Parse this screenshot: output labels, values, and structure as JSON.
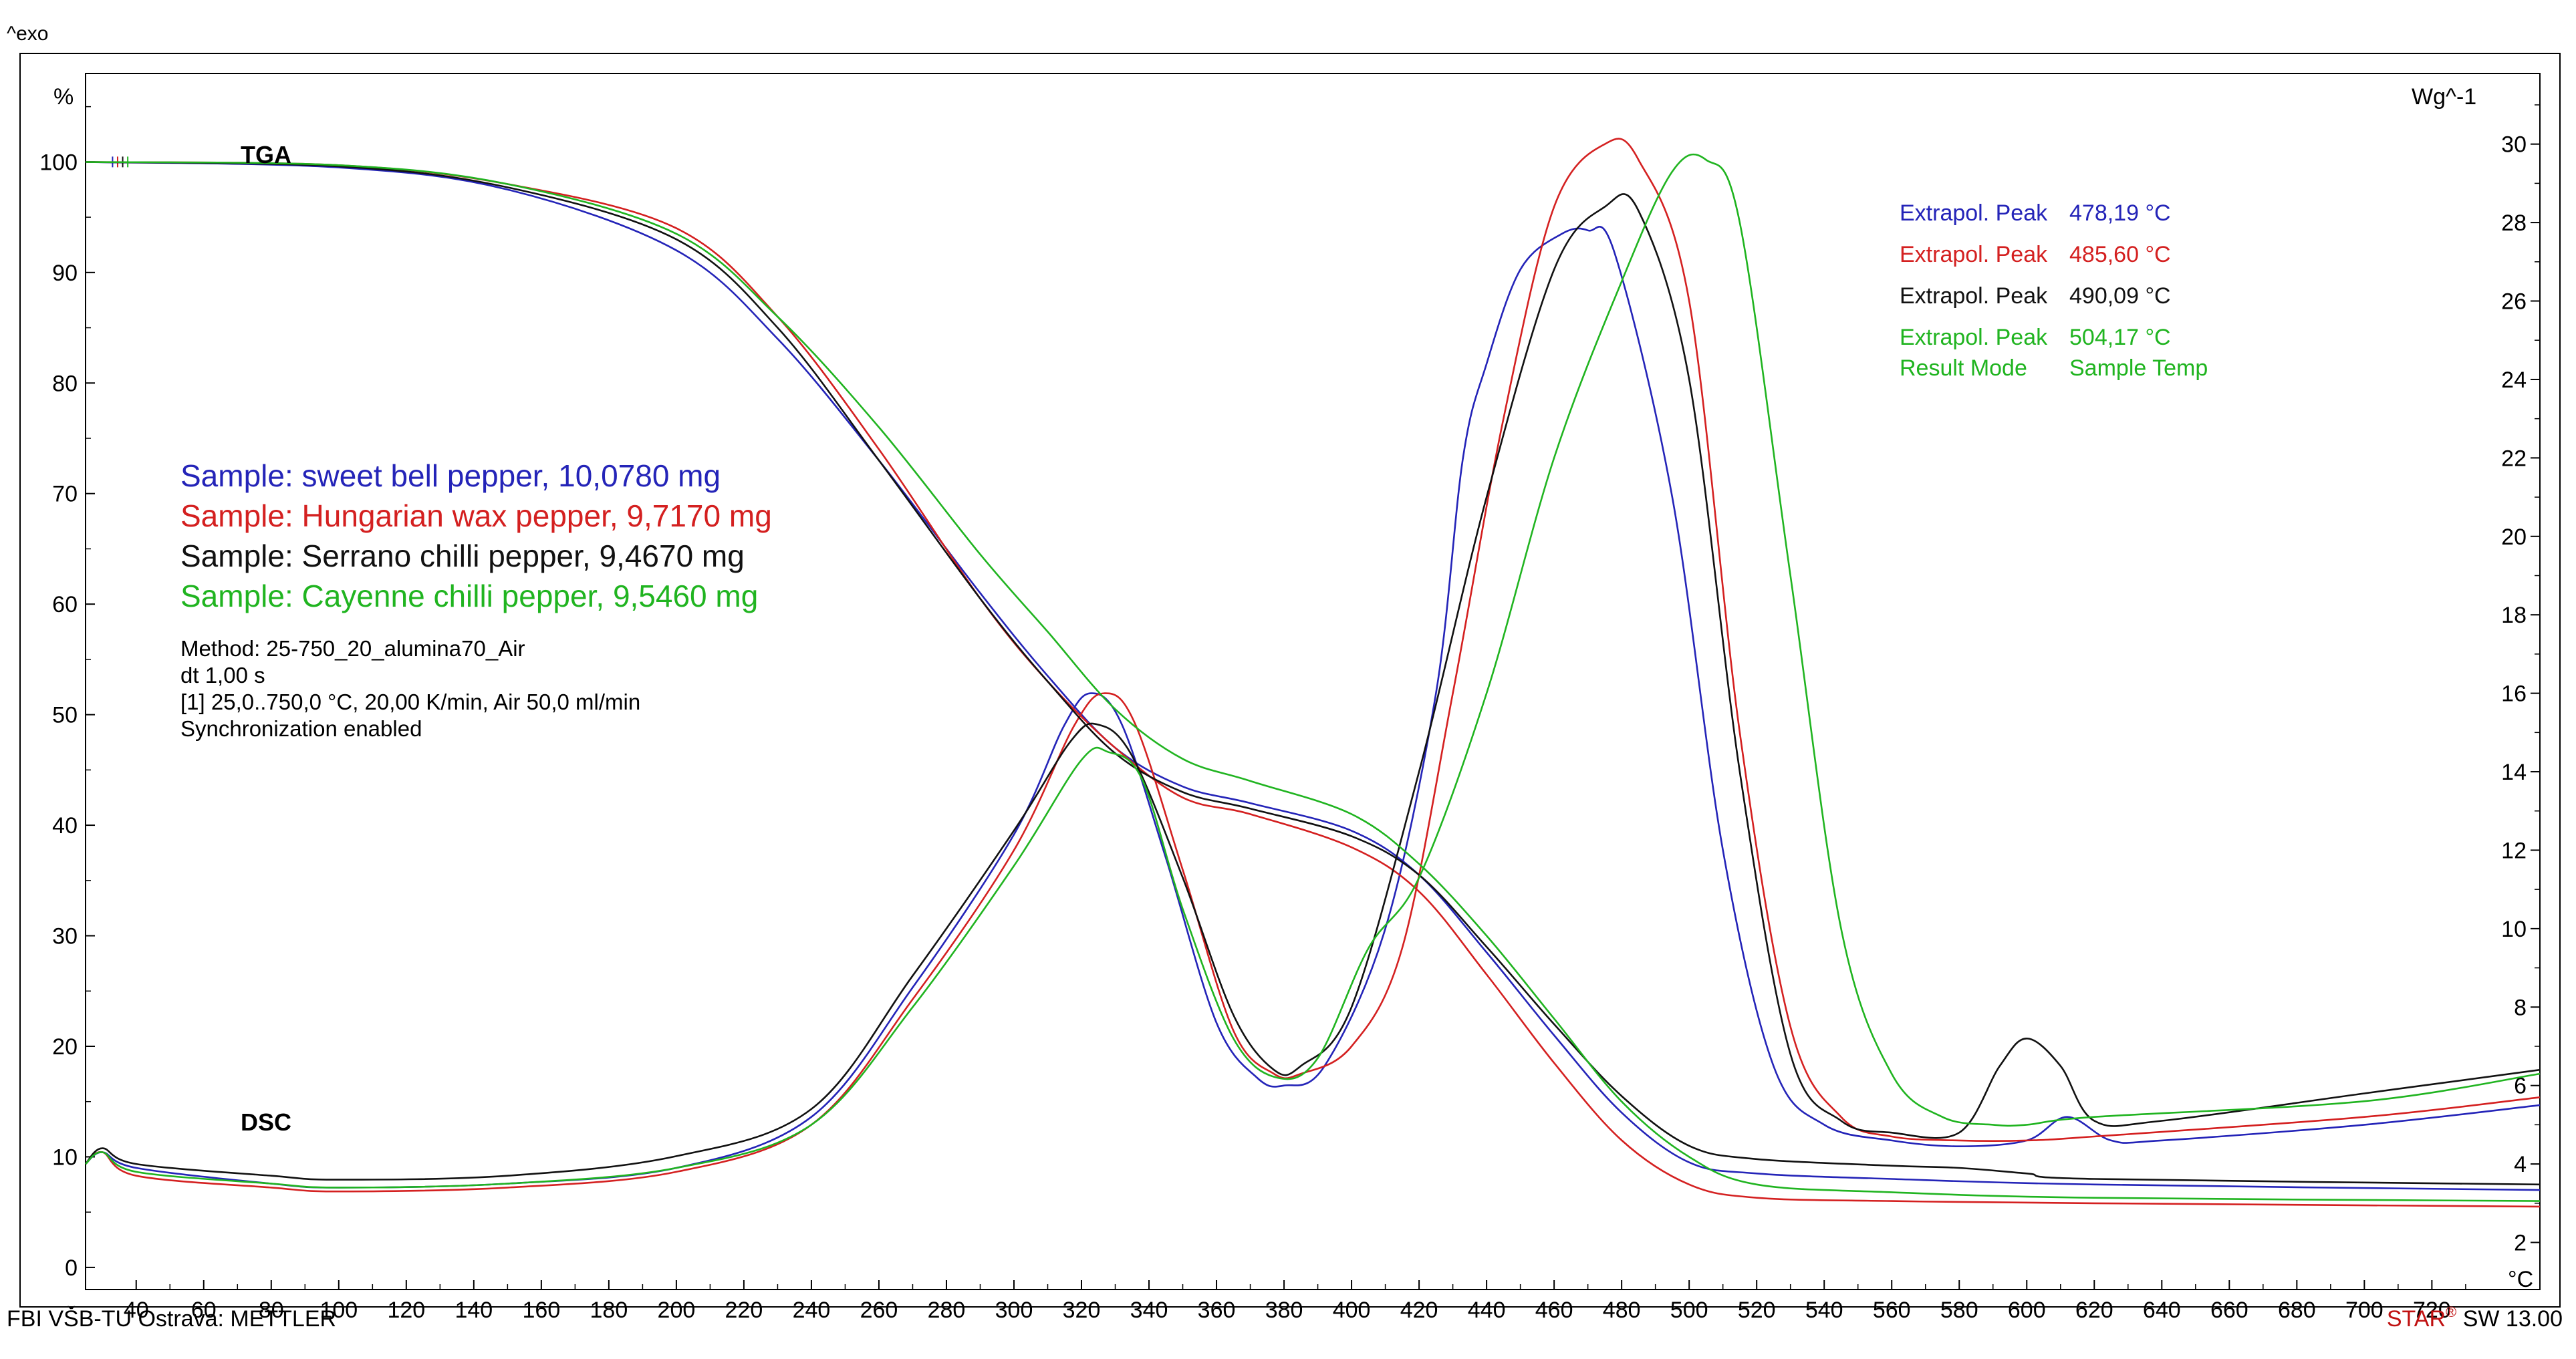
{
  "header": {
    "exo_label": "^exo"
  },
  "footer": {
    "left": "FBI VŠB-TU Ostrava: METTLER",
    "right_prefix": "STAR",
    "right_suffix": " SW 13.00"
  },
  "chart_data": {
    "type": "line",
    "axes": {
      "x": {
        "label": "°C",
        "min": 25,
        "max": 752,
        "ticks": [
          40,
          60,
          80,
          100,
          120,
          140,
          160,
          180,
          200,
          220,
          240,
          260,
          280,
          300,
          320,
          340,
          360,
          380,
          400,
          420,
          440,
          460,
          480,
          500,
          520,
          540,
          560,
          580,
          600,
          620,
          640,
          660,
          680,
          700,
          720
        ]
      },
      "y_left": {
        "label": "%",
        "min": -2,
        "max": 108,
        "ticks": [
          0,
          10,
          20,
          30,
          40,
          50,
          60,
          70,
          80,
          90,
          100
        ]
      },
      "y_right": {
        "label": "Wg^-1",
        "min": 0.8,
        "max": 31.8,
        "ticks": [
          2,
          4,
          6,
          8,
          10,
          12,
          14,
          16,
          18,
          20,
          22,
          24,
          26,
          28,
          30
        ]
      }
    },
    "curve_labels": {
      "tga": "TGA",
      "dsc": "DSC"
    },
    "series": [
      {
        "name": "Sample: sweet bell pepper, 10,0780 mg",
        "color": "#2424b8",
        "tga": [
          [
            25,
            100
          ],
          [
            100,
            99.5
          ],
          [
            150,
            97.5
          ],
          [
            200,
            92
          ],
          [
            230,
            84
          ],
          [
            260,
            73
          ],
          [
            290,
            61
          ],
          [
            310,
            53.5
          ],
          [
            330,
            47
          ],
          [
            350,
            43.5
          ],
          [
            370,
            42
          ],
          [
            400,
            39.5
          ],
          [
            420,
            35.5
          ],
          [
            440,
            28.5
          ],
          [
            460,
            21
          ],
          [
            480,
            14
          ],
          [
            500,
            9.5
          ],
          [
            520,
            8.5
          ],
          [
            560,
            8
          ],
          [
            620,
            7.5
          ],
          [
            752,
            7
          ]
        ],
        "dsc": [
          [
            25,
            4.0
          ],
          [
            30,
            4.3
          ],
          [
            40,
            3.9
          ],
          [
            80,
            3.5
          ],
          [
            100,
            3.4
          ],
          [
            150,
            3.5
          ],
          [
            200,
            3.9
          ],
          [
            240,
            5.2
          ],
          [
            270,
            8.5
          ],
          [
            300,
            12.4
          ],
          [
            315,
            15.2
          ],
          [
            323,
            16.0
          ],
          [
            332,
            15.2
          ],
          [
            345,
            11.8
          ],
          [
            360,
            7.6
          ],
          [
            372,
            6.2
          ],
          [
            380,
            6.0
          ],
          [
            392,
            6.5
          ],
          [
            410,
            10
          ],
          [
            425,
            16
          ],
          [
            433,
            22
          ],
          [
            440,
            24.4
          ],
          [
            450,
            26.8
          ],
          [
            462,
            27.7
          ],
          [
            470,
            27.8
          ],
          [
            478,
            27.2
          ],
          [
            495,
            21
          ],
          [
            510,
            12
          ],
          [
            525,
            6.5
          ],
          [
            540,
            5.0
          ],
          [
            560,
            4.6
          ],
          [
            580,
            4.45
          ],
          [
            600,
            4.6
          ],
          [
            612,
            5.2
          ],
          [
            625,
            4.6
          ],
          [
            640,
            4.6
          ],
          [
            700,
            5.0
          ],
          [
            752,
            5.5
          ]
        ]
      },
      {
        "name": "Sample: Hungarian wax pepper, 9,7170 mg",
        "color": "#d42020",
        "tga": [
          [
            25,
            100
          ],
          [
            100,
            99.7
          ],
          [
            150,
            98
          ],
          [
            200,
            94
          ],
          [
            230,
            86
          ],
          [
            260,
            74
          ],
          [
            290,
            60.5
          ],
          [
            310,
            53
          ],
          [
            330,
            47
          ],
          [
            350,
            42.5
          ],
          [
            370,
            41
          ],
          [
            400,
            38
          ],
          [
            420,
            34
          ],
          [
            440,
            26.5
          ],
          [
            460,
            18.5
          ],
          [
            480,
            11.5
          ],
          [
            500,
            7.5
          ],
          [
            520,
            6.3
          ],
          [
            560,
            6
          ],
          [
            620,
            5.8
          ],
          [
            752,
            5.5
          ]
        ],
        "dsc": [
          [
            25,
            4.0
          ],
          [
            30,
            4.3
          ],
          [
            40,
            3.7
          ],
          [
            80,
            3.4
          ],
          [
            100,
            3.3
          ],
          [
            150,
            3.4
          ],
          [
            200,
            3.8
          ],
          [
            240,
            5.0
          ],
          [
            270,
            8.2
          ],
          [
            300,
            12.0
          ],
          [
            318,
            15.2
          ],
          [
            327,
            16.0
          ],
          [
            336,
            15.2
          ],
          [
            350,
            11.5
          ],
          [
            365,
            7.4
          ],
          [
            377,
            6.3
          ],
          [
            385,
            6.3
          ],
          [
            400,
            7.0
          ],
          [
            415,
            9.5
          ],
          [
            430,
            16
          ],
          [
            445,
            23
          ],
          [
            460,
            28.4
          ],
          [
            475,
            30.0
          ],
          [
            485,
            29.6
          ],
          [
            500,
            26
          ],
          [
            515,
            15
          ],
          [
            530,
            7.5
          ],
          [
            545,
            5.2
          ],
          [
            560,
            4.7
          ],
          [
            580,
            4.6
          ],
          [
            600,
            4.6
          ],
          [
            620,
            4.7
          ],
          [
            700,
            5.2
          ],
          [
            752,
            5.7
          ]
        ]
      },
      {
        "name": "Sample: Serrano chilli pepper, 9,4670 mg",
        "color": "#111111",
        "tga": [
          [
            25,
            100
          ],
          [
            100,
            99.6
          ],
          [
            150,
            97.7
          ],
          [
            200,
            93
          ],
          [
            230,
            85
          ],
          [
            260,
            73
          ],
          [
            290,
            60.5
          ],
          [
            310,
            53
          ],
          [
            330,
            46.5
          ],
          [
            350,
            43
          ],
          [
            370,
            41.5
          ],
          [
            400,
            39
          ],
          [
            420,
            35.5
          ],
          [
            440,
            29
          ],
          [
            460,
            22
          ],
          [
            480,
            15.5
          ],
          [
            500,
            11
          ],
          [
            520,
            9.8
          ],
          [
            560,
            9.2
          ],
          [
            580,
            9
          ],
          [
            600,
            8.5
          ],
          [
            620,
            8
          ],
          [
            752,
            7.5
          ]
        ],
        "dsc": [
          [
            25,
            4.0
          ],
          [
            30,
            4.4
          ],
          [
            40,
            4.0
          ],
          [
            80,
            3.7
          ],
          [
            100,
            3.6
          ],
          [
            150,
            3.7
          ],
          [
            200,
            4.2
          ],
          [
            240,
            5.4
          ],
          [
            270,
            8.8
          ],
          [
            300,
            12.5
          ],
          [
            317,
            14.8
          ],
          [
            325,
            15.2
          ],
          [
            335,
            14.4
          ],
          [
            350,
            11.3
          ],
          [
            365,
            7.8
          ],
          [
            377,
            6.4
          ],
          [
            385,
            6.5
          ],
          [
            400,
            8.0
          ],
          [
            420,
            14
          ],
          [
            440,
            21
          ],
          [
            460,
            26.8
          ],
          [
            475,
            28.4
          ],
          [
            485,
            28.3
          ],
          [
            500,
            24
          ],
          [
            515,
            14
          ],
          [
            530,
            6.8
          ],
          [
            545,
            5.1
          ],
          [
            560,
            4.8
          ],
          [
            580,
            4.8
          ],
          [
            592,
            6.5
          ],
          [
            600,
            7.2
          ],
          [
            610,
            6.5
          ],
          [
            620,
            5.1
          ],
          [
            640,
            5.1
          ],
          [
            700,
            5.8
          ],
          [
            752,
            6.4
          ]
        ]
      },
      {
        "name": "Sample: Cayenne chilli pepper, 9,5460 mg",
        "color": "#20b420",
        "tga": [
          [
            25,
            100
          ],
          [
            100,
            99.7
          ],
          [
            150,
            98
          ],
          [
            200,
            93.5
          ],
          [
            230,
            86
          ],
          [
            260,
            76
          ],
          [
            290,
            64.5
          ],
          [
            310,
            57.5
          ],
          [
            330,
            50.5
          ],
          [
            350,
            46
          ],
          [
            370,
            44
          ],
          [
            400,
            41
          ],
          [
            420,
            36.5
          ],
          [
            440,
            30
          ],
          [
            460,
            22.5
          ],
          [
            480,
            15
          ],
          [
            500,
            10
          ],
          [
            520,
            7.5
          ],
          [
            560,
            6.8
          ],
          [
            620,
            6.3
          ],
          [
            752,
            6
          ]
        ],
        "dsc": [
          [
            25,
            4.0
          ],
          [
            30,
            4.3
          ],
          [
            40,
            3.8
          ],
          [
            80,
            3.5
          ],
          [
            100,
            3.4
          ],
          [
            150,
            3.5
          ],
          [
            200,
            3.9
          ],
          [
            240,
            5.0
          ],
          [
            270,
            8.0
          ],
          [
            300,
            11.6
          ],
          [
            320,
            14.3
          ],
          [
            328,
            14.5
          ],
          [
            338,
            13.8
          ],
          [
            350,
            10.5
          ],
          [
            365,
            7.2
          ],
          [
            378,
            6.2
          ],
          [
            390,
            6.7
          ],
          [
            405,
            9.5
          ],
          [
            420,
            11.3
          ],
          [
            440,
            16
          ],
          [
            460,
            22
          ],
          [
            480,
            26.5
          ],
          [
            495,
            29.3
          ],
          [
            505,
            29.6
          ],
          [
            515,
            28
          ],
          [
            530,
            19
          ],
          [
            545,
            10
          ],
          [
            560,
            6.3
          ],
          [
            575,
            5.2
          ],
          [
            590,
            5.0
          ],
          [
            600,
            5.0
          ],
          [
            620,
            5.2
          ],
          [
            700,
            5.6
          ],
          [
            752,
            6.3
          ]
        ]
      }
    ],
    "legend": {
      "samples": [
        {
          "text": "Sample: sweet bell pepper, 10,0780 mg",
          "color": "#2424b8"
        },
        {
          "text": "Sample: Hungarian wax pepper, 9,7170 mg",
          "color": "#d42020"
        },
        {
          "text": "Sample: Serrano chilli pepper, 9,4670 mg",
          "color": "#111111"
        },
        {
          "text": "Sample: Cayenne chilli pepper, 9,5460 mg",
          "color": "#20b420"
        }
      ],
      "method_lines": [
        "Method: 25-750_20_alumina70_Air",
        "dt 1,00 s",
        "[1] 25,0..750,0 °C, 20,00 K/min, Air 50,0 ml/min",
        "Synchronization enabled"
      ]
    },
    "peaks": [
      {
        "label": "Extrapol. Peak",
        "value": "478,19 °C",
        "color": "#2424b8"
      },
      {
        "label": "Extrapol. Peak",
        "value": "485,60 °C",
        "color": "#d42020"
      },
      {
        "label": "Extrapol. Peak",
        "value": "490,09 °C",
        "color": "#111111"
      },
      {
        "label": "Extrapol. Peak",
        "value": "504,17 °C",
        "color": "#20b420"
      }
    ],
    "result_mode": {
      "label": "Result Mode",
      "value": "Sample Temp",
      "color": "#20b420"
    }
  }
}
